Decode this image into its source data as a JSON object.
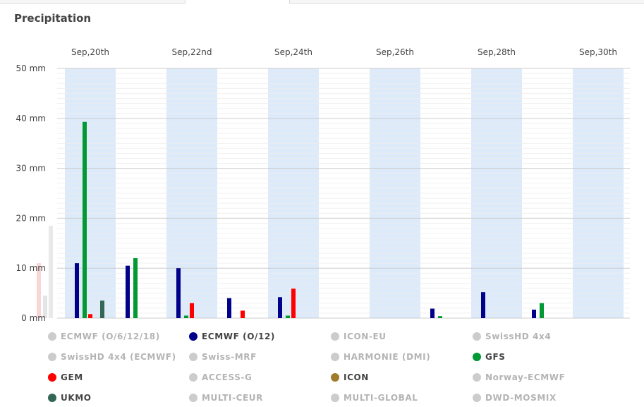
{
  "page": {
    "title": "Precipitation"
  },
  "colors": {
    "band": "#ddeaf9",
    "grid_major": "#cccccc",
    "grid_minor": "#ededed",
    "inactive": "#cccccc",
    "inactive_text": "#b4b4b4",
    "active_text": "#444444"
  },
  "chart_data": {
    "type": "bar",
    "title": "Precipitation",
    "x_tick_labels": [
      "Sep,20th",
      "Sep,22nd",
      "Sep,24th",
      "Sep,26th",
      "Sep,28th",
      "Sep,30th"
    ],
    "y_tick_labels": [
      "0 mm",
      "10 mm",
      "20 mm",
      "30 mm",
      "40 mm",
      "50 mm"
    ],
    "ylim": [
      0,
      50
    ],
    "y_unit": "mm",
    "categories": [
      "Sep 20",
      "Sep 21",
      "Sep 22",
      "Sep 23",
      "Sep 24",
      "Sep 25",
      "Sep 26",
      "Sep 27",
      "Sep 28",
      "Sep 29",
      "Sep 30"
    ],
    "series": [
      {
        "name": "ECMWF (O/12)",
        "color": "#00008b",
        "values": [
          11.0,
          10.5,
          10.0,
          4.0,
          4.2,
          0,
          0,
          1.9,
          5.2,
          1.7,
          0
        ]
      },
      {
        "name": "GFS",
        "color": "#009933",
        "values": [
          39.3,
          12.0,
          0.5,
          0,
          0.5,
          0,
          0,
          0.4,
          0,
          3.0,
          0
        ]
      },
      {
        "name": "GEM",
        "color": "#ff0000",
        "values": [
          0.8,
          0,
          3.0,
          1.5,
          5.9,
          0,
          0,
          0,
          0,
          0,
          0
        ]
      },
      {
        "name": "UKMO",
        "color": "#336655",
        "values": [
          3.5,
          0,
          0,
          0,
          0,
          0,
          0,
          0,
          0,
          0,
          0
        ]
      }
    ],
    "grid": true,
    "legend_position": "bottom"
  },
  "legend": [
    {
      "label": "ECMWF (O/6/12/18)",
      "color": "#cccccc",
      "active": false
    },
    {
      "label": "ECMWF (O/12)",
      "color": "#00008b",
      "active": true
    },
    {
      "label": "ICON-EU",
      "color": "#cccccc",
      "active": false
    },
    {
      "label": "SwissHD 4x4",
      "color": "#cccccc",
      "active": false
    },
    {
      "label": "SwissHD 4x4 (ECMWF)",
      "color": "#cccccc",
      "active": false
    },
    {
      "label": "Swiss-MRF",
      "color": "#cccccc",
      "active": false
    },
    {
      "label": "HARMONIE (DMI)",
      "color": "#cccccc",
      "active": false
    },
    {
      "label": "GFS",
      "color": "#009933",
      "active": true
    },
    {
      "label": "GEM",
      "color": "#ff0000",
      "active": true
    },
    {
      "label": "ACCESS-G",
      "color": "#cccccc",
      "active": false
    },
    {
      "label": "ICON",
      "color": "#a07b2c",
      "active": true
    },
    {
      "label": "Norway-ECMWF",
      "color": "#cccccc",
      "active": false
    },
    {
      "label": "UKMO",
      "color": "#336655",
      "active": true
    },
    {
      "label": "MULTI-CEUR",
      "color": "#cccccc",
      "active": false
    },
    {
      "label": "MULTI-GLOBAL",
      "color": "#cccccc",
      "active": false
    },
    {
      "label": "DWD-MOSMIX",
      "color": "#cccccc",
      "active": false
    }
  ]
}
